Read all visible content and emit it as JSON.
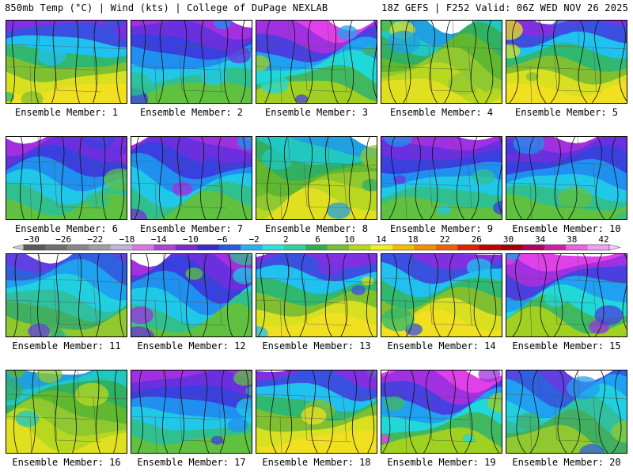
{
  "header": {
    "left": "850mb Temp (°C) | Wind (kts) | College of DuPage NEXLAB",
    "right": "18Z GEFS | F252 Valid: 06Z WED NOV 26 2025"
  },
  "members": [
    {
      "label": "Ensemble Member: 1",
      "style": "warm-south"
    },
    {
      "label": "Ensemble Member: 2",
      "style": "cold-north"
    },
    {
      "label": "Ensemble Member: 3",
      "style": "magenta-top"
    },
    {
      "label": "Ensemble Member: 4",
      "style": "green-mild"
    },
    {
      "label": "Ensemble Member: 5",
      "style": "warm-south"
    },
    {
      "label": "Ensemble Member: 6",
      "style": "cold-north"
    },
    {
      "label": "Ensemble Member: 7",
      "style": "cold-north"
    },
    {
      "label": "Ensemble Member: 8",
      "style": "green-mild"
    },
    {
      "label": "Ensemble Member: 9",
      "style": "cold-north"
    },
    {
      "label": "Ensemble Member: 10",
      "style": "cold-north"
    },
    {
      "label": "Ensemble Member: 11",
      "style": "cyan"
    },
    {
      "label": "Ensemble Member: 12",
      "style": "cold-north"
    },
    {
      "label": "Ensemble Member: 13",
      "style": "warm-south"
    },
    {
      "label": "Ensemble Member: 14",
      "style": "warm-south"
    },
    {
      "label": "Ensemble Member: 15",
      "style": "magenta-top"
    },
    {
      "label": "Ensemble Member: 16",
      "style": "green-mild"
    },
    {
      "label": "Ensemble Member: 17",
      "style": "cold-north"
    },
    {
      "label": "Ensemble Member: 18",
      "style": "warm-south"
    },
    {
      "label": "Ensemble Member: 19",
      "style": "magenta-top"
    },
    {
      "label": "Ensemble Member: 20",
      "style": "cyan"
    }
  ],
  "colorbar": {
    "labels": [
      "−30",
      "−26",
      "−22",
      "−18",
      "−14",
      "−10",
      "−6",
      "−2",
      "2",
      "6",
      "10",
      "14",
      "18",
      "22",
      "26",
      "30",
      "34",
      "38",
      "42"
    ],
    "colors": [
      "#5a5a5a",
      "#707070",
      "#888888",
      "#a0a0a0",
      "#c0b4d8",
      "#d878e8",
      "#b040d8",
      "#7a2ad0",
      "#3a2ad0",
      "#2a58e0",
      "#2ab0f0",
      "#30e0e0",
      "#30d0a0",
      "#30b050",
      "#78c030",
      "#b8d820",
      "#f0f020",
      "#f0c000",
      "#f09000",
      "#f06000",
      "#e02000",
      "#c00000",
      "#a00000",
      "#b00060",
      "#d020a0",
      "#f060e0",
      "#f0a0f0"
    ]
  }
}
